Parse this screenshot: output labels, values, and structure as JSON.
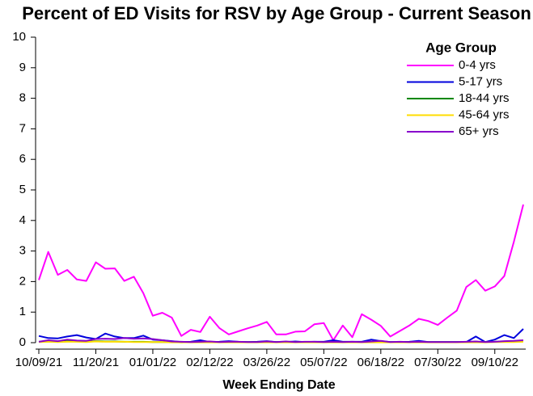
{
  "chart_data": {
    "type": "line",
    "title": "Percent of ED Visits for RSV by Age Group - Current Season",
    "x_label": "Week Ending Date",
    "legend_title": "Age Group",
    "legend_position": "upper right",
    "x": [
      "10/09/21",
      "10/16/21",
      "10/23/21",
      "10/30/21",
      "11/06/21",
      "11/13/21",
      "11/20/21",
      "11/27/21",
      "12/04/21",
      "12/11/21",
      "12/18/21",
      "12/25/21",
      "01/01/22",
      "01/08/22",
      "01/15/22",
      "01/22/22",
      "01/29/22",
      "02/05/22",
      "02/12/22",
      "02/19/22",
      "02/26/22",
      "03/05/22",
      "03/12/22",
      "03/19/22",
      "03/26/22",
      "04/02/22",
      "04/09/22",
      "04/16/22",
      "04/23/22",
      "04/30/22",
      "05/07/22",
      "05/14/22",
      "05/21/22",
      "05/28/22",
      "06/04/22",
      "06/11/22",
      "06/18/22",
      "06/25/22",
      "07/02/22",
      "07/09/22",
      "07/16/22",
      "07/23/22",
      "07/30/22",
      "08/06/22",
      "08/13/22",
      "08/20/22",
      "08/27/22",
      "09/03/22",
      "09/10/22",
      "09/17/22",
      "09/24/22",
      "10/01/22"
    ],
    "xlim": [
      "10/09/21",
      "10/01/22"
    ],
    "xticks": [
      "10/09/21",
      "11/20/21",
      "01/01/22",
      "02/12/22",
      "03/26/22",
      "05/07/22",
      "06/18/22",
      "07/30/22",
      "09/10/22"
    ],
    "ylim": [
      0,
      10
    ],
    "yticks": [
      0,
      1,
      2,
      3,
      4,
      5,
      6,
      7,
      8,
      9,
      10
    ],
    "grid": false,
    "series": [
      {
        "name": "0-4 yrs",
        "color": "#ff00ff",
        "values": [
          2.05,
          2.97,
          2.22,
          2.38,
          2.07,
          2.02,
          2.63,
          2.42,
          2.43,
          2.02,
          2.16,
          1.62,
          0.88,
          0.98,
          0.82,
          0.22,
          0.42,
          0.35,
          0.85,
          0.48,
          0.27,
          0.37,
          0.47,
          0.56,
          0.68,
          0.27,
          0.27,
          0.36,
          0.37,
          0.6,
          0.64,
          0.08,
          0.56,
          0.18,
          0.93,
          0.75,
          0.55,
          0.2,
          0.38,
          0.56,
          0.78,
          0.71,
          0.58,
          0.82,
          1.05,
          1.82,
          2.05,
          1.7,
          1.84,
          2.18,
          3.3,
          4.52
        ]
      },
      {
        "name": "5-17 yrs",
        "color": "#0000dd",
        "values": [
          0.22,
          0.15,
          0.14,
          0.2,
          0.25,
          0.17,
          0.12,
          0.3,
          0.2,
          0.15,
          0.15,
          0.23,
          0.1,
          0.08,
          0.05,
          0.02,
          0.03,
          0.08,
          0.02,
          0.03,
          0.05,
          0.03,
          0.02,
          0.03,
          0.05,
          0.02,
          0.02,
          0.04,
          0.02,
          0.03,
          0.03,
          0.08,
          0.03,
          0.03,
          0.03,
          0.1,
          0.05,
          0.02,
          0.02,
          0.03,
          0.06,
          0.02,
          0.02,
          0.02,
          0.02,
          0.02,
          0.2,
          0.02,
          0.1,
          0.25,
          0.15,
          0.45
        ]
      },
      {
        "name": "18-44 yrs",
        "color": "#008800",
        "values": [
          0.03,
          0.05,
          0.03,
          0.05,
          0.04,
          0.03,
          0.05,
          0.04,
          0.04,
          0.03,
          0.03,
          0.03,
          0.02,
          0.02,
          0.02,
          0.01,
          0.02,
          0.02,
          0.02,
          0.02,
          0.02,
          0.02,
          0.02,
          0.02,
          0.02,
          0.02,
          0.02,
          0.02,
          0.02,
          0.02,
          0.02,
          0.02,
          0.02,
          0.02,
          0.02,
          0.02,
          0.02,
          0.02,
          0.02,
          0.02,
          0.02,
          0.02,
          0.02,
          0.02,
          0.02,
          0.02,
          0.03,
          0.02,
          0.03,
          0.04,
          0.04,
          0.05
        ]
      },
      {
        "name": "45-64 yrs",
        "color": "#ffdd00",
        "values": [
          0.02,
          0.03,
          0.02,
          0.03,
          0.03,
          0.02,
          0.04,
          0.03,
          0.03,
          0.03,
          0.02,
          0.02,
          0.02,
          0.02,
          0.01,
          0.01,
          0.01,
          0.01,
          0.01,
          0.01,
          0.01,
          0.01,
          0.01,
          0.01,
          0.01,
          0.01,
          0.01,
          0.01,
          0.01,
          0.01,
          0.01,
          0.01,
          0.01,
          0.01,
          0.01,
          0.01,
          0.01,
          0.01,
          0.01,
          0.01,
          0.01,
          0.01,
          0.01,
          0.01,
          0.01,
          0.01,
          0.01,
          0.01,
          0.02,
          0.02,
          0.02,
          0.03
        ]
      },
      {
        "name": "65+ yrs",
        "color": "#8800cc",
        "values": [
          0.03,
          0.08,
          0.05,
          0.1,
          0.07,
          0.06,
          0.12,
          0.13,
          0.12,
          0.15,
          0.13,
          0.14,
          0.12,
          0.08,
          0.04,
          0.03,
          0.02,
          0.03,
          0.04,
          0.02,
          0.03,
          0.03,
          0.02,
          0.02,
          0.04,
          0.02,
          0.04,
          0.02,
          0.03,
          0.03,
          0.02,
          0.03,
          0.02,
          0.03,
          0.02,
          0.04,
          0.06,
          0.02,
          0.03,
          0.02,
          0.03,
          0.02,
          0.02,
          0.02,
          0.02,
          0.03,
          0.04,
          0.02,
          0.03,
          0.05,
          0.06,
          0.08
        ]
      }
    ]
  }
}
